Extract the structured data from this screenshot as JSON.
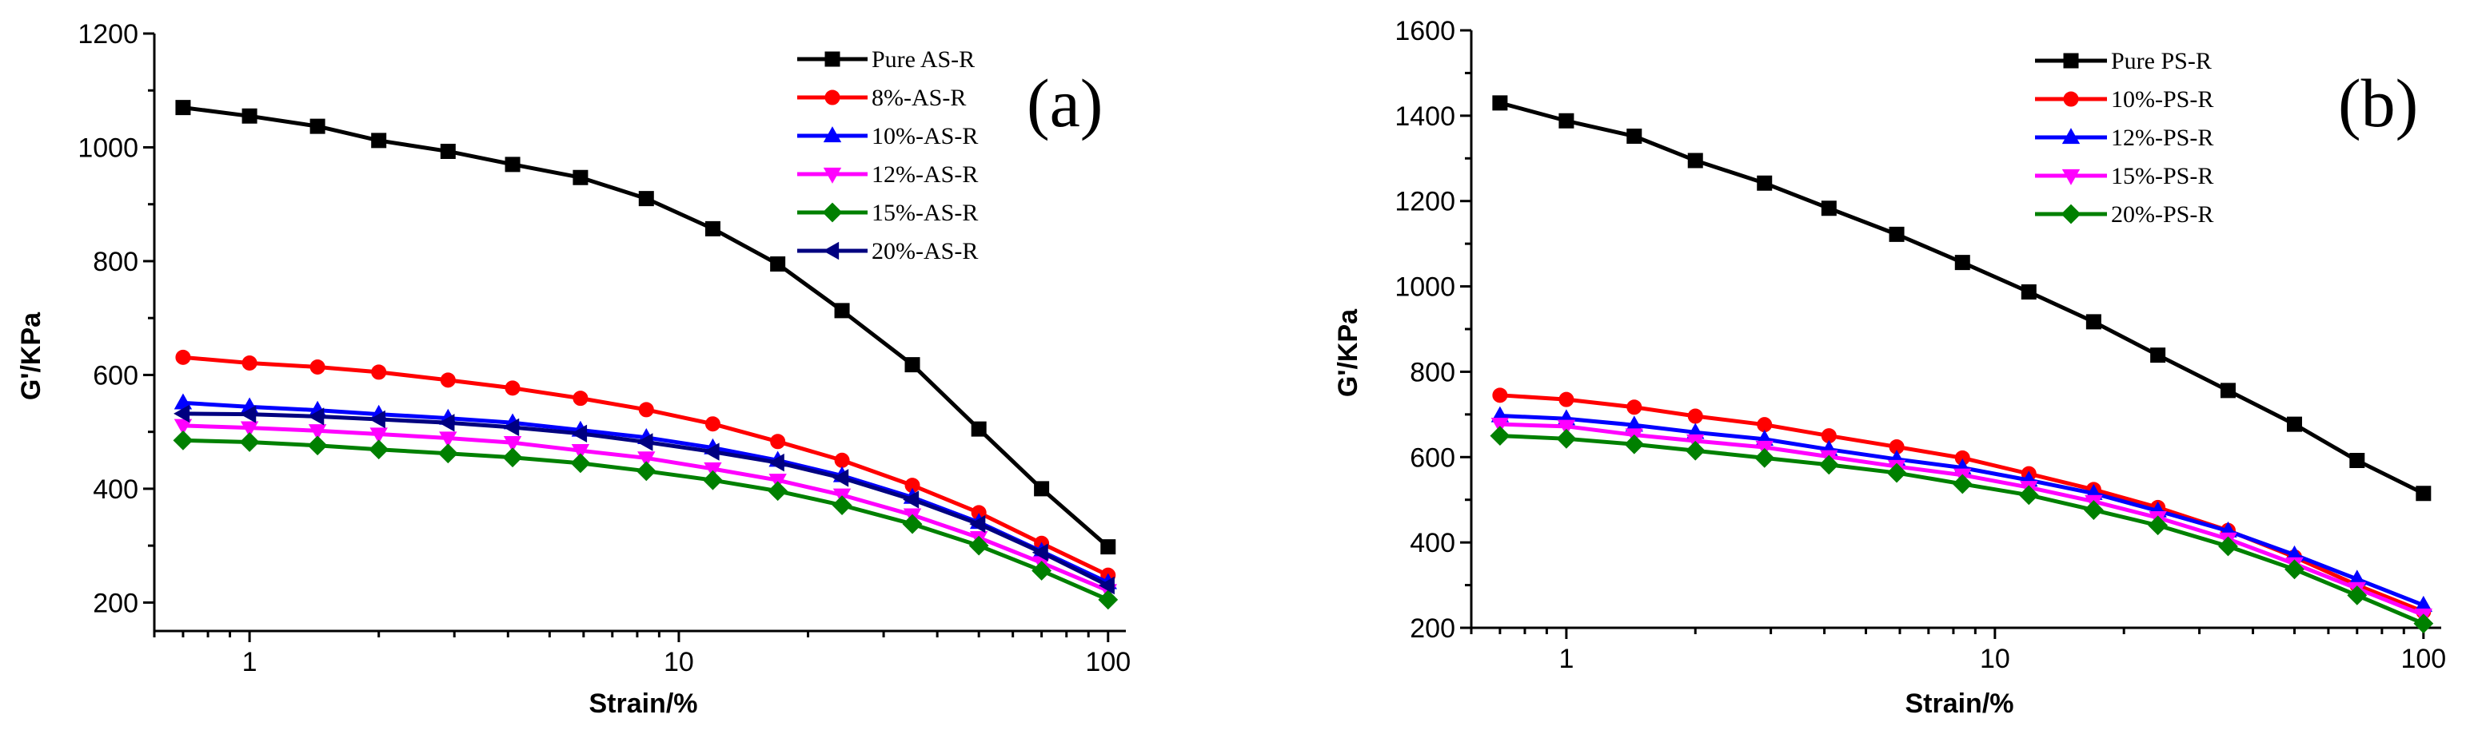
{
  "chart_data": [
    {
      "type": "line",
      "panel_label": "(a)",
      "xlabel": "Strain/%",
      "ylabel": "G'/KPa",
      "x_scale": "log",
      "xlim": [
        0.6,
        110
      ],
      "ylim": [
        150,
        1200
      ],
      "x_ticks": [
        1,
        10,
        100
      ],
      "x_tick_labels": [
        "1",
        "10",
        "100"
      ],
      "y_ticks": [
        200,
        400,
        600,
        800,
        1000,
        1200
      ],
      "y_tick_labels": [
        "200",
        "400",
        "600",
        "800",
        "1000",
        "1200"
      ],
      "legend_position": "top-right",
      "x": [
        0.7,
        1.0,
        1.44,
        2.0,
        2.9,
        4.1,
        5.9,
        8.4,
        12.0,
        17.0,
        24.0,
        35.0,
        50.0,
        70.0,
        100.0
      ],
      "series": [
        {
          "name": "Pure AS-R",
          "color": "#000000",
          "marker": "square",
          "values": [
            1070,
            1055,
            1037,
            1012,
            993,
            970,
            947,
            910,
            857,
            795,
            713,
            618,
            505,
            400,
            298
          ]
        },
        {
          "name": "8%-AS-R",
          "color": "#ff0000",
          "marker": "circle",
          "values": [
            631,
            621,
            614,
            605,
            591,
            577,
            559,
            539,
            514,
            483,
            450,
            406,
            358,
            304,
            248
          ]
        },
        {
          "name": "10%-AS-R",
          "color": "#0000ff",
          "marker": "triangle-up",
          "values": [
            551,
            544,
            538,
            531,
            524,
            516,
            503,
            490,
            472,
            450,
            423,
            385,
            341,
            290,
            235
          ]
        },
        {
          "name": "12%-AS-R",
          "color": "#ff00ff",
          "marker": "triangle-down",
          "values": [
            511,
            507,
            502,
            496,
            489,
            481,
            467,
            454,
            435,
            415,
            389,
            354,
            314,
            270,
            221
          ]
        },
        {
          "name": "15%-AS-R",
          "color": "#008000",
          "marker": "diamond",
          "values": [
            485,
            482,
            476,
            469,
            462,
            455,
            445,
            431,
            415,
            396,
            371,
            338,
            300,
            256,
            205
          ]
        },
        {
          "name": "20%-AS-R",
          "color": "#000080",
          "marker": "triangle-left",
          "values": [
            532,
            531,
            527,
            522,
            516,
            508,
            497,
            482,
            465,
            446,
            419,
            381,
            338,
            288,
            230
          ]
        }
      ]
    },
    {
      "type": "line",
      "panel_label": "(b)",
      "xlabel": "Strain/%",
      "ylabel": "G'/KPa",
      "x_scale": "log",
      "xlim": [
        0.6,
        110
      ],
      "ylim": [
        200,
        1600
      ],
      "x_ticks": [
        1,
        10,
        100
      ],
      "x_tick_labels": [
        "1",
        "10",
        "100"
      ],
      "y_ticks": [
        200,
        400,
        600,
        800,
        1000,
        1200,
        1400,
        1600
      ],
      "y_tick_labels": [
        "200",
        "400",
        "600",
        "800",
        "1000",
        "1200",
        "1400",
        "1600"
      ],
      "legend_position": "top-right",
      "x": [
        0.7,
        1.0,
        1.44,
        2.0,
        2.9,
        4.1,
        5.9,
        8.4,
        12.0,
        17.0,
        24.0,
        35.0,
        50.0,
        70.0,
        100.0
      ],
      "series": [
        {
          "name": "Pure PS-R",
          "color": "#000000",
          "marker": "square",
          "values": [
            1430,
            1388,
            1352,
            1295,
            1242,
            1183,
            1122,
            1056,
            987,
            917,
            839,
            756,
            677,
            592,
            515
          ]
        },
        {
          "name": "10%-PS-R",
          "color": "#ff0000",
          "marker": "circle",
          "values": [
            745,
            735,
            717,
            696,
            676,
            650,
            624,
            598,
            561,
            524,
            482,
            428,
            366,
            300,
            238
          ]
        },
        {
          "name": "12%-PS-R",
          "color": "#0000ff",
          "marker": "triangle-up",
          "values": [
            697,
            690,
            675,
            658,
            642,
            618,
            595,
            575,
            546,
            515,
            474,
            427,
            371,
            314,
            253
          ]
        },
        {
          "name": "15%-PS-R",
          "color": "#ff00ff",
          "marker": "triangle-down",
          "values": [
            677,
            672,
            652,
            638,
            623,
            601,
            578,
            558,
            529,
            496,
            458,
            408,
            350,
            292,
            230
          ]
        },
        {
          "name": "20%-PS-R",
          "color": "#008000",
          "marker": "diamond",
          "values": [
            650,
            643,
            630,
            615,
            598,
            582,
            563,
            537,
            511,
            476,
            440,
            391,
            337,
            276,
            210
          ]
        }
      ]
    }
  ]
}
